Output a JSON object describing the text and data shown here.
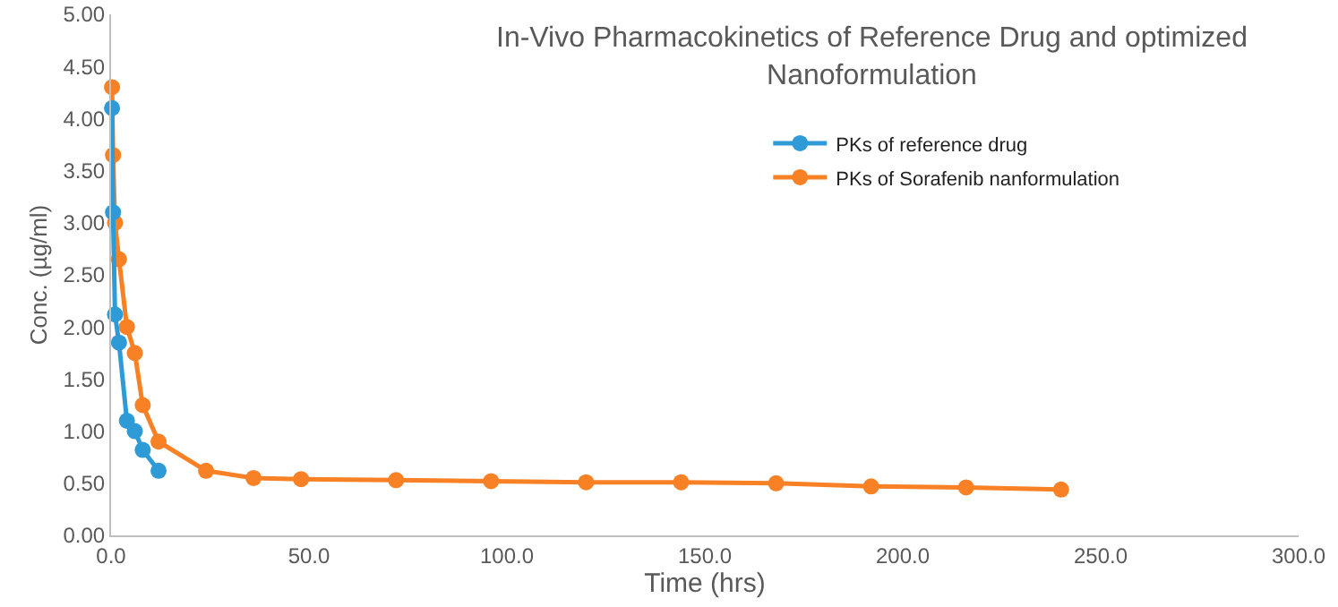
{
  "chart_data": {
    "type": "line",
    "title": "In-Vivo Pharmacokinetics of Reference Drug and optimized Nanoformulation",
    "xlabel": "Time (hrs)",
    "ylabel": "Conc. (µg/ml)",
    "xlim": [
      0,
      300
    ],
    "xticks": [
      {
        "value": 0,
        "label": "0.0"
      },
      {
        "value": 50,
        "label": "50.0"
      },
      {
        "value": 100,
        "label": "100.0"
      },
      {
        "value": 150,
        "label": "150.0"
      },
      {
        "value": 200,
        "label": "200.0"
      },
      {
        "value": 250,
        "label": "250.0"
      },
      {
        "value": 300,
        "label": "300.0"
      }
    ],
    "ylim": [
      0,
      5
    ],
    "yticks": [
      {
        "value": 0,
        "label": "0.00"
      },
      {
        "value": 0.5,
        "label": "0.50"
      },
      {
        "value": 1,
        "label": "1.00"
      },
      {
        "value": 1.5,
        "label": "1.50"
      },
      {
        "value": 2,
        "label": "2.00"
      },
      {
        "value": 2.5,
        "label": "2.50"
      },
      {
        "value": 3,
        "label": "3.00"
      },
      {
        "value": 3.5,
        "label": "3.50"
      },
      {
        "value": 4,
        "label": "4.00"
      },
      {
        "value": 4.5,
        "label": "4.50"
      },
      {
        "value": 5,
        "label": "5.00"
      }
    ],
    "grid": false,
    "legend": "right",
    "marker": "circle",
    "line_style": "solid",
    "series": [
      {
        "name": "PKs of reference drug",
        "color": "#2e9ad6",
        "x": [
          0.25,
          0.5,
          1,
          2,
          4,
          6,
          8,
          12
        ],
        "values": [
          4.1,
          3.1,
          2.12,
          1.85,
          1.1,
          1.0,
          0.82,
          0.62
        ]
      },
      {
        "name": "PKs of Sorafenib nanformulation",
        "color": "#f98125",
        "x": [
          0.25,
          0.5,
          1,
          2,
          4,
          6,
          8,
          12,
          24,
          36,
          48,
          72,
          96,
          120,
          144,
          168,
          192,
          216,
          240
        ],
        "values": [
          4.3,
          3.65,
          3.0,
          2.65,
          2.0,
          1.75,
          1.25,
          0.9,
          0.62,
          0.55,
          0.54,
          0.53,
          0.52,
          0.51,
          0.51,
          0.5,
          0.47,
          0.46,
          0.44
        ]
      }
    ]
  }
}
